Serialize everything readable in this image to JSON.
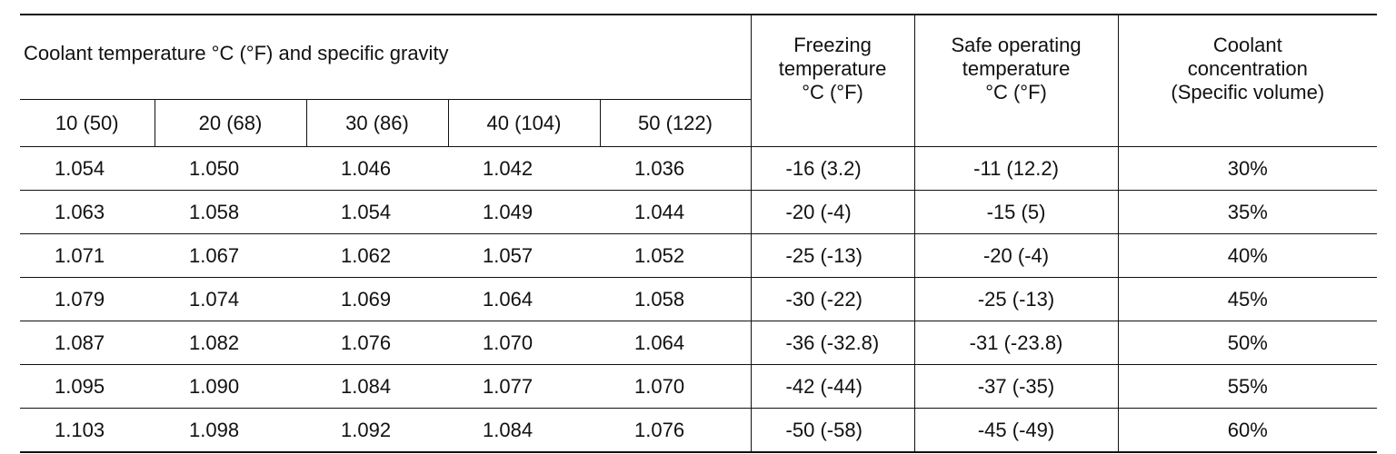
{
  "table": {
    "header": {
      "group": "Coolant temperature °C (°F) and specific gravity",
      "temperatures": [
        "10 (50)",
        "20 (68)",
        "30 (86)",
        "40 (104)",
        "50 (122)"
      ],
      "freezing": [
        "Freezing",
        "temperature",
        "°C (°F)"
      ],
      "safe": [
        "Safe operating",
        "temperature",
        "°C (°F)"
      ],
      "concentration": [
        "Coolant",
        "concentration",
        "(Specific volume)"
      ]
    },
    "rows": [
      [
        "1.054",
        "1.050",
        "1.046",
        "1.042",
        "1.036",
        "-16 (3.2)",
        "-11 (12.2)",
        "30%"
      ],
      [
        "1.063",
        "1.058",
        "1.054",
        "1.049",
        "1.044",
        "-20 (-4)",
        "-15 (5)",
        "35%"
      ],
      [
        "1.071",
        "1.067",
        "1.062",
        "1.057",
        "1.052",
        "-25 (-13)",
        "-20 (-4)",
        "40%"
      ],
      [
        "1.079",
        "1.074",
        "1.069",
        "1.064",
        "1.058",
        "-30 (-22)",
        "-25 (-13)",
        "45%"
      ],
      [
        "1.087",
        "1.082",
        "1.076",
        "1.070",
        "1.064",
        "-36 (-32.8)",
        "-31 (-23.8)",
        "50%"
      ],
      [
        "1.095",
        "1.090",
        "1.084",
        "1.077",
        "1.070",
        "-42 (-44)",
        "-37 (-35)",
        "55%"
      ],
      [
        "1.103",
        "1.098",
        "1.092",
        "1.084",
        "1.076",
        "-50 (-58)",
        "-45 (-49)",
        "60%"
      ]
    ]
  }
}
